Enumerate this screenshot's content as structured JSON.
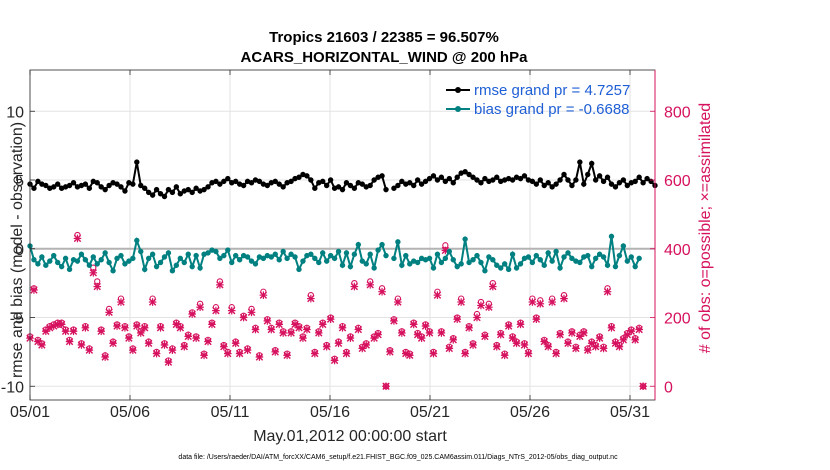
{
  "chart_data": {
    "type": "line",
    "title_line1": "Tropics 21603 / 22385 = 96.507%",
    "title_line2": "ACARS_HORIZONTAL_WIND @ 200 hPa",
    "xlabel": "May.01,2012 00:00:00 start",
    "ylabel_left": "rmse and bias (model - observation)",
    "ylabel_right": "# of obs: o=possible; ×=assimilated",
    "footnote": "data file: /Users/raeder/DAI/ATM_forcXX/CAM6_setup/f.e21.FHIST_BGC.f09_025.CAM6assim.011/Diags_NTrS_2012-05/obs_diag_output.nc",
    "x_tick_labels": [
      "05/01",
      "05/06",
      "05/11",
      "05/16",
      "05/21",
      "05/26",
      "05/31"
    ],
    "x_tick_days": [
      1,
      6,
      11,
      16,
      21,
      26,
      31
    ],
    "xlim": [
      1,
      32.25
    ],
    "ylim_left": [
      -11,
      13
    ],
    "left_ticks": [
      -10,
      -5,
      0,
      5,
      10
    ],
    "left_tick_labels": [
      "-10",
      "-5",
      "0",
      "5",
      "10"
    ],
    "ylim_right": [
      -40,
      920
    ],
    "right_ticks": [
      0,
      200,
      400,
      600,
      800
    ],
    "right_tick_labels": [
      "0",
      "200",
      "400",
      "600",
      "800"
    ],
    "grid": true,
    "zero_line": 0,
    "legend_position": "top-right",
    "legend": [
      {
        "label": "rmse grand pr = 4.7257",
        "color": "#000000"
      },
      {
        "label": "bias grand pr = -0.6688",
        "color": "#008080"
      }
    ],
    "colors": {
      "rmse": "#000000",
      "bias": "#008080",
      "obs": "#d6115e",
      "legend_text": "#1f5fd6",
      "zero": "#b3b3b3"
    },
    "rmse_values": [
      4.7,
      4.4,
      4.9,
      4.7,
      4.6,
      4.4,
      4.5,
      4.7,
      4.4,
      4.5,
      4.6,
      4.8,
      4.5,
      4.6,
      4.7,
      4.4,
      4.9,
      4.8,
      4.5,
      4.3,
      4.6,
      4.8,
      4.7,
      4.5,
      4.2,
      4.8,
      4.7,
      6.3,
      4.6,
      4.4,
      4.1,
      3.9,
      4.3,
      4.0,
      3.8,
      4.3,
      4.1,
      4.5,
      4.0,
      4.2,
      4.3,
      4.1,
      4.4,
      4.2,
      4.3,
      4.5,
      4.8,
      4.9,
      4.7,
      4.9,
      5.1,
      4.8,
      4.9,
      4.7,
      4.6,
      4.9,
      4.8,
      5.0,
      4.9,
      4.7,
      4.6,
      4.8,
      4.9,
      4.7,
      4.5,
      4.8,
      4.9,
      5.1,
      5.2,
      5.4,
      5.3,
      5.0,
      4.4,
      4.8,
      4.9,
      4.6,
      5.0,
      4.4,
      4.5,
      4.3,
      4.8,
      4.6,
      4.4,
      4.8,
      4.7,
      4.5,
      4.6,
      5.0,
      5.2,
      5.3,
      4.3,
      null,
      4.4,
      4.6,
      4.9,
      4.7,
      4.8,
      4.6,
      5.0,
      4.7,
      4.9,
      5.1,
      5.3,
      5.0,
      5.2,
      4.9,
      5.1,
      4.8,
      5.2,
      5.5,
      5.6,
      5.4,
      5.2,
      5.0,
      4.8,
      5.1,
      4.9,
      5.0,
      5.2,
      4.9,
      5.0,
      5.1,
      5.0,
      5.2,
      5.1,
      5.3,
      5.0,
      4.9,
      4.7,
      5.0,
      4.6,
      4.8,
      4.5,
      4.7,
      5.0,
      5.4,
      5.0,
      4.6,
      5.0,
      6.3,
      4.7,
      5.4,
      6.2,
      5.0,
      5.3,
      4.9,
      5.2,
      4.7,
      4.5,
      4.8,
      5.0,
      4.6,
      4.8,
      4.9,
      5.2,
      4.8,
      5.1,
      4.9,
      4.6
    ],
    "bias_values": [
      0.2,
      -0.8,
      -1.1,
      -0.6,
      -1.2,
      -0.9,
      -0.5,
      -1.0,
      -1.3,
      -0.7,
      -1.5,
      -0.8,
      -0.9,
      -0.4,
      -0.8,
      -1.2,
      -0.6,
      -1.1,
      -0.8,
      -0.3,
      -1.0,
      -1.6,
      -0.7,
      -0.5,
      -1.1,
      -0.9,
      -0.7,
      0.6,
      -0.2,
      -1.5,
      -0.7,
      -0.4,
      -1.3,
      -1.0,
      -0.6,
      -0.3,
      -1.6,
      -1.2,
      -0.7,
      -1.0,
      -0.4,
      -1.3,
      -0.5,
      -1.4,
      -0.4,
      -0.3,
      -0.1,
      -0.2,
      -0.7,
      -0.5,
      -0.1,
      -1.0,
      -0.5,
      -0.8,
      -0.5,
      -0.6,
      -0.9,
      -1.1,
      -0.6,
      -0.7,
      -0.5,
      -0.6,
      -0.4,
      -0.8,
      -0.2,
      -0.7,
      -0.4,
      -0.6,
      -1.5,
      -0.9,
      -0.5,
      -0.4,
      -0.7,
      -1.0,
      -0.3,
      -0.9,
      -0.5,
      -0.7,
      -0.2,
      -1.2,
      -0.3,
      -1.3,
      -0.4,
      0.3,
      -0.9,
      -1.1,
      -0.4,
      -1.4,
      -0.1,
      0.3,
      -0.5,
      null,
      -0.7,
      0.5,
      -1.2,
      -0.5,
      -1.1,
      -0.9,
      -1.0,
      -0.7,
      -0.8,
      -0.7,
      -1.4,
      -0.4,
      -1.0,
      -0.7,
      -0.2,
      -0.8,
      -1.3,
      -1.1,
      0.7,
      -1.0,
      -0.8,
      -0.5,
      -1.0,
      -1.6,
      -0.6,
      -0.8,
      -1.2,
      -1.4,
      -1.1,
      -1.5,
      -0.4,
      -1.4,
      -1.1,
      -0.7,
      -0.6,
      -1.0,
      -0.5,
      -0.8,
      -1.2,
      -0.3,
      -0.9,
      -0.2,
      -1.4,
      -0.6,
      -0.3,
      -0.7,
      -0.9,
      -1.0,
      -0.6,
      -0.5,
      -1.3,
      -0.7,
      -0.4,
      -0.6,
      -1.2,
      0.9,
      -1.3,
      -0.5,
      0.2,
      -0.9,
      -0.6,
      -1.3,
      -0.7
    ],
    "obs_possible": [
      145,
      285,
      135,
      125,
      165,
      175,
      180,
      185,
      185,
      165,
      135,
      165,
      440,
      125,
      175,
      110,
      345,
      305,
      165,
      90,
      225,
      130,
      180,
      255,
      175,
      145,
      110,
      180,
      160,
      175,
      130,
      255,
      100,
      175,
      125,
      75,
      110,
      185,
      175,
      120,
      150,
      215,
      145,
      240,
      95,
      135,
      185,
      230,
      305,
      120,
      100,
      230,
      130,
      100,
      205,
      110,
      225,
      170,
      90,
      275,
      195,
      170,
      105,
      185,
      160,
      95,
      160,
      185,
      175,
      145,
      170,
      265,
      100,
      160,
      185,
      120,
      200,
      80,
      130,
      175,
      100,
      145,
      300,
      170,
      115,
      125,
      305,
      145,
      155,
      285,
      0,
      105,
      195,
      255,
      160,
      100,
      95,
      185,
      155,
      145,
      180,
      160,
      100,
      275,
      160,
      410,
      115,
      140,
      200,
      255,
      100,
      175,
      125,
      210,
      245,
      150,
      240,
      300,
      120,
      155,
      95,
      180,
      145,
      130,
      185,
      125,
      100,
      255,
      200,
      250,
      135,
      120,
      255,
      100,
      155,
      265,
      130,
      160,
      115,
      150,
      160,
      110,
      130,
      120,
      145,
      115,
      285,
      175,
      130,
      120,
      140,
      155,
      165,
      140,
      170,
      0
    ],
    "obs_assimilated": [
      140,
      280,
      130,
      120,
      160,
      170,
      175,
      180,
      180,
      160,
      130,
      160,
      430,
      120,
      170,
      105,
      330,
      290,
      160,
      85,
      215,
      125,
      175,
      245,
      170,
      140,
      105,
      175,
      155,
      170,
      125,
      245,
      95,
      170,
      120,
      70,
      105,
      180,
      170,
      115,
      145,
      210,
      140,
      230,
      90,
      130,
      180,
      220,
      295,
      115,
      95,
      220,
      125,
      95,
      200,
      105,
      215,
      165,
      85,
      265,
      190,
      165,
      100,
      180,
      155,
      90,
      155,
      180,
      170,
      140,
      165,
      255,
      95,
      155,
      180,
      115,
      195,
      75,
      125,
      170,
      95,
      140,
      290,
      165,
      110,
      120,
      295,
      140,
      150,
      275,
      0,
      100,
      190,
      245,
      155,
      95,
      90,
      180,
      150,
      140,
      175,
      155,
      95,
      265,
      155,
      395,
      110,
      135,
      195,
      245,
      95,
      170,
      120,
      200,
      235,
      145,
      230,
      290,
      115,
      150,
      90,
      175,
      140,
      125,
      180,
      120,
      95,
      245,
      195,
      240,
      130,
      115,
      245,
      95,
      150,
      255,
      125,
      155,
      110,
      145,
      155,
      105,
      125,
      115,
      140,
      110,
      275,
      170,
      125,
      115,
      135,
      150,
      160,
      135,
      165,
      0
    ]
  }
}
